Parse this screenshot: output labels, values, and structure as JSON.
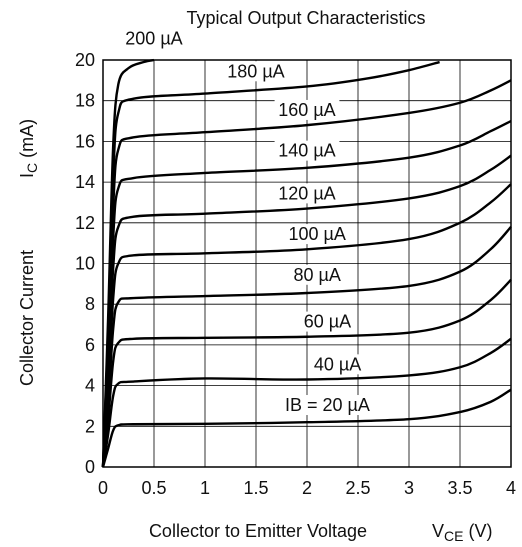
{
  "chart_data": {
    "type": "line",
    "title": "Typical Output Characteristics",
    "xlabel": "Collector to Emitter Voltage",
    "xlabel_symbol": {
      "main": "V",
      "sub": "CE",
      "unit": "(V)"
    },
    "ylabel": "Collector Current",
    "ylabel_symbol": {
      "main": "I",
      "sub": "C",
      "unit": "(mA)"
    },
    "xlim": [
      0,
      4
    ],
    "ylim": [
      0,
      20
    ],
    "grid": true,
    "x_ticks": [
      "0",
      "0.5",
      "1",
      "1.5",
      "2",
      "2.5",
      "3",
      "3.5",
      "4"
    ],
    "y_ticks": [
      "0",
      "2",
      "4",
      "6",
      "8",
      "10",
      "12",
      "14",
      "16",
      "18",
      "20"
    ],
    "series": [
      {
        "name": "IB = 20 µA",
        "label": "IB = 20 µA",
        "points": [
          [
            0,
            0
          ],
          [
            0.05,
            0.9
          ],
          [
            0.1,
            1.8
          ],
          [
            0.15,
            2.05
          ],
          [
            0.3,
            2.1
          ],
          [
            1,
            2.12
          ],
          [
            2,
            2.2
          ],
          [
            3,
            2.35
          ],
          [
            3.5,
            2.7
          ],
          [
            3.8,
            3.2
          ],
          [
            4,
            3.8
          ]
        ]
      },
      {
        "name": "40 µA",
        "label": "40 µA",
        "points": [
          [
            0,
            0
          ],
          [
            0.05,
            1.6
          ],
          [
            0.1,
            3.5
          ],
          [
            0.15,
            4.1
          ],
          [
            0.3,
            4.2
          ],
          [
            1,
            4.35
          ],
          [
            2,
            4.3
          ],
          [
            3,
            4.5
          ],
          [
            3.5,
            4.9
          ],
          [
            3.8,
            5.6
          ],
          [
            4,
            6.3
          ]
        ]
      },
      {
        "name": "60 µA",
        "label": "60 µA",
        "points": [
          [
            0,
            0
          ],
          [
            0.05,
            2.3
          ],
          [
            0.1,
            5.2
          ],
          [
            0.15,
            6.1
          ],
          [
            0.3,
            6.3
          ],
          [
            1,
            6.35
          ],
          [
            2,
            6.4
          ],
          [
            3,
            6.6
          ],
          [
            3.5,
            7.2
          ],
          [
            3.8,
            8.2
          ],
          [
            4,
            9.2
          ]
        ]
      },
      {
        "name": "80 µA",
        "label": "80 µA",
        "points": [
          [
            0,
            0
          ],
          [
            0.05,
            3.0
          ],
          [
            0.1,
            6.8
          ],
          [
            0.15,
            8.1
          ],
          [
            0.3,
            8.3
          ],
          [
            1,
            8.4
          ],
          [
            2,
            8.55
          ],
          [
            3,
            8.9
          ],
          [
            3.5,
            9.6
          ],
          [
            3.8,
            10.7
          ],
          [
            4,
            11.8
          ]
        ]
      },
      {
        "name": "100 µA",
        "label": "100 µA",
        "points": [
          [
            0,
            0
          ],
          [
            0.05,
            3.8
          ],
          [
            0.1,
            8.3
          ],
          [
            0.15,
            10.0
          ],
          [
            0.3,
            10.4
          ],
          [
            1,
            10.5
          ],
          [
            2,
            10.7
          ],
          [
            3,
            11.2
          ],
          [
            3.5,
            12.0
          ],
          [
            3.8,
            13.0
          ],
          [
            4,
            13.9
          ]
        ]
      },
      {
        "name": "120 µA",
        "label": "120 µA",
        "points": [
          [
            0,
            0
          ],
          [
            0.05,
            4.5
          ],
          [
            0.1,
            9.8
          ],
          [
            0.15,
            11.8
          ],
          [
            0.3,
            12.3
          ],
          [
            1,
            12.45
          ],
          [
            2,
            12.7
          ],
          [
            3,
            13.2
          ],
          [
            3.5,
            13.8
          ],
          [
            3.8,
            14.6
          ],
          [
            4,
            15.3
          ]
        ]
      },
      {
        "name": "140 µA",
        "label": "140 µA",
        "points": [
          [
            0,
            0
          ],
          [
            0.05,
            5.2
          ],
          [
            0.1,
            11.3
          ],
          [
            0.15,
            13.7
          ],
          [
            0.3,
            14.2
          ],
          [
            1,
            14.45
          ],
          [
            2,
            14.7
          ],
          [
            3,
            15.2
          ],
          [
            3.5,
            15.8
          ],
          [
            3.8,
            16.5
          ],
          [
            4,
            17.0
          ]
        ]
      },
      {
        "name": "160 µA",
        "label": "160 µA",
        "points": [
          [
            0,
            0
          ],
          [
            0.05,
            5.9
          ],
          [
            0.1,
            12.8
          ],
          [
            0.15,
            15.6
          ],
          [
            0.3,
            16.2
          ],
          [
            1,
            16.45
          ],
          [
            2,
            16.8
          ],
          [
            3,
            17.4
          ],
          [
            3.5,
            17.9
          ],
          [
            3.8,
            18.5
          ],
          [
            4,
            19.0
          ]
        ]
      },
      {
        "name": "180 µA",
        "label": "180 µA",
        "points": [
          [
            0,
            0
          ],
          [
            0.05,
            6.6
          ],
          [
            0.1,
            14.3
          ],
          [
            0.15,
            17.4
          ],
          [
            0.3,
            18.1
          ],
          [
            1,
            18.35
          ],
          [
            2,
            18.7
          ],
          [
            2.6,
            19.1
          ],
          [
            3,
            19.5
          ],
          [
            3.3,
            19.9
          ]
        ]
      },
      {
        "name": "200 µA",
        "label": "200 µA",
        "points": [
          [
            0,
            0
          ],
          [
            0.05,
            7.3
          ],
          [
            0.1,
            15.8
          ],
          [
            0.15,
            18.8
          ],
          [
            0.25,
            19.6
          ],
          [
            0.4,
            19.9
          ],
          [
            0.5,
            20.0
          ]
        ]
      }
    ],
    "label_positions_v": [
      [
        2.2,
        2.8
      ],
      [
        2.3,
        4.8
      ],
      [
        2.2,
        6.9
      ],
      [
        2.1,
        9.2
      ],
      [
        2.1,
        11.2
      ],
      [
        2.0,
        13.2
      ],
      [
        2.0,
        15.3
      ],
      [
        2.0,
        17.3
      ],
      [
        1.5,
        19.2
      ],
      [
        0.5,
        20.8
      ]
    ]
  }
}
